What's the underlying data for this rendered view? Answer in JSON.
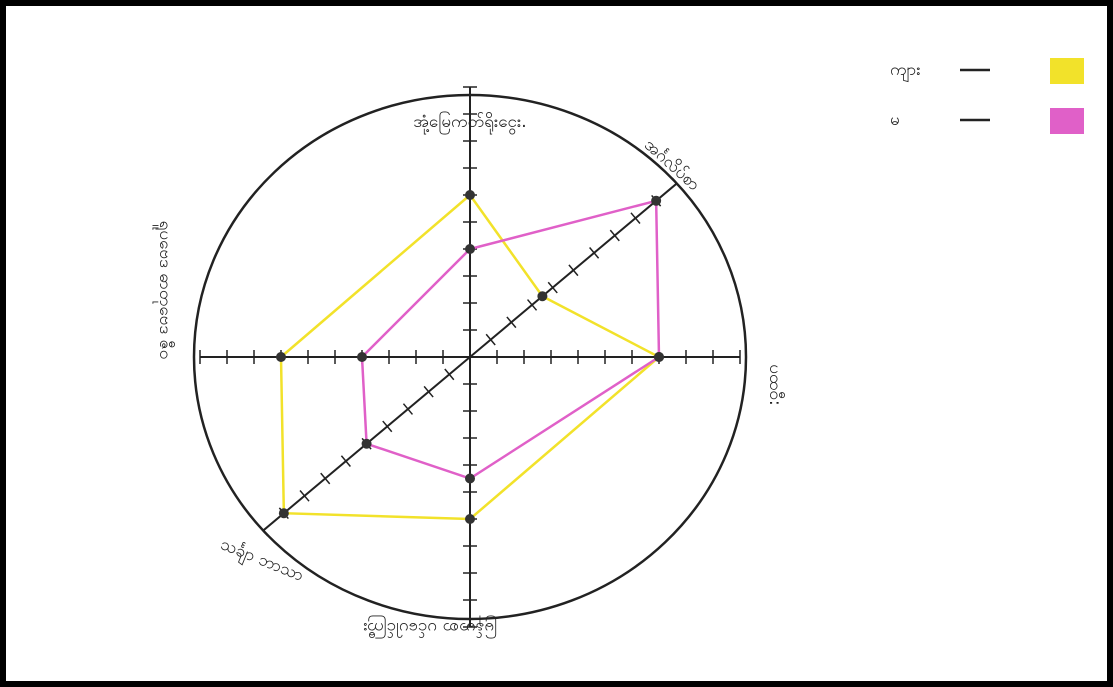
{
  "chart_data": {
    "type": "radar",
    "categories": [
      "အုံ့မြေကတ်ရိုးငွေး.",
      "အင်္ဂလိပ်စာ",
      "ပထဝီ:",
      "မြန်မာစာ ပင်ပေါင်ကြီး",
      "သင်္ချာ ဘာသာ",
      "ရူပဗေဒ ဓာတုဗေဒ ဇီဝ"
    ],
    "series": [
      {
        "name": "ကျား",
        "color": "#f2e22a",
        "values": [
          6,
          3.5,
          7,
          6,
          9,
          7
        ]
      },
      {
        "name": "မ",
        "color": "#e060c8",
        "values": [
          4,
          9,
          7,
          4.5,
          5,
          4
        ]
      }
    ],
    "rlim": [
      0,
      10
    ],
    "rticks": [
      1,
      2,
      3,
      4,
      5,
      6,
      7,
      8,
      9,
      10
    ]
  }
}
